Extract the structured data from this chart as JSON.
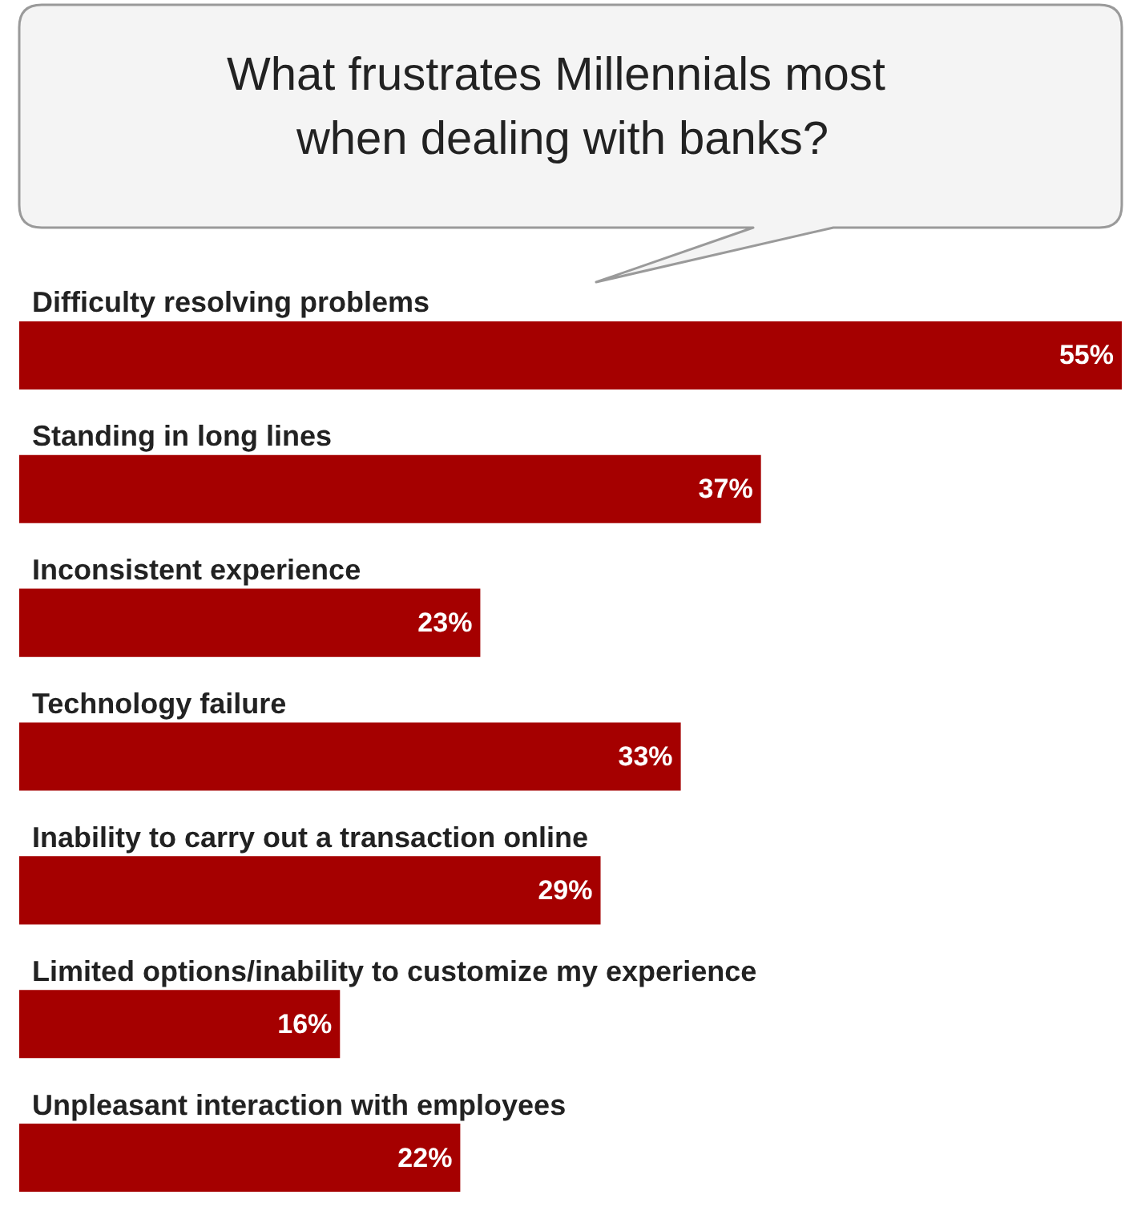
{
  "chart_data": {
    "type": "bar",
    "orientation": "horizontal",
    "title": "What frustrates Millennials most when dealing with banks?",
    "categories": [
      "Difficulty resolving problems",
      "Standing in long lines",
      "Inconsistent experience",
      "Technology failure",
      "Inability to carry out a transaction online",
      "Limited options/inability to customize my experience",
      "Unpleasant interaction with employees"
    ],
    "values": [
      55,
      37,
      23,
      33,
      29,
      16,
      22
    ],
    "value_labels": [
      "55%",
      "37%",
      "23%",
      "33%",
      "29%",
      "16%",
      "22%"
    ],
    "color": "#a50000"
  }
}
